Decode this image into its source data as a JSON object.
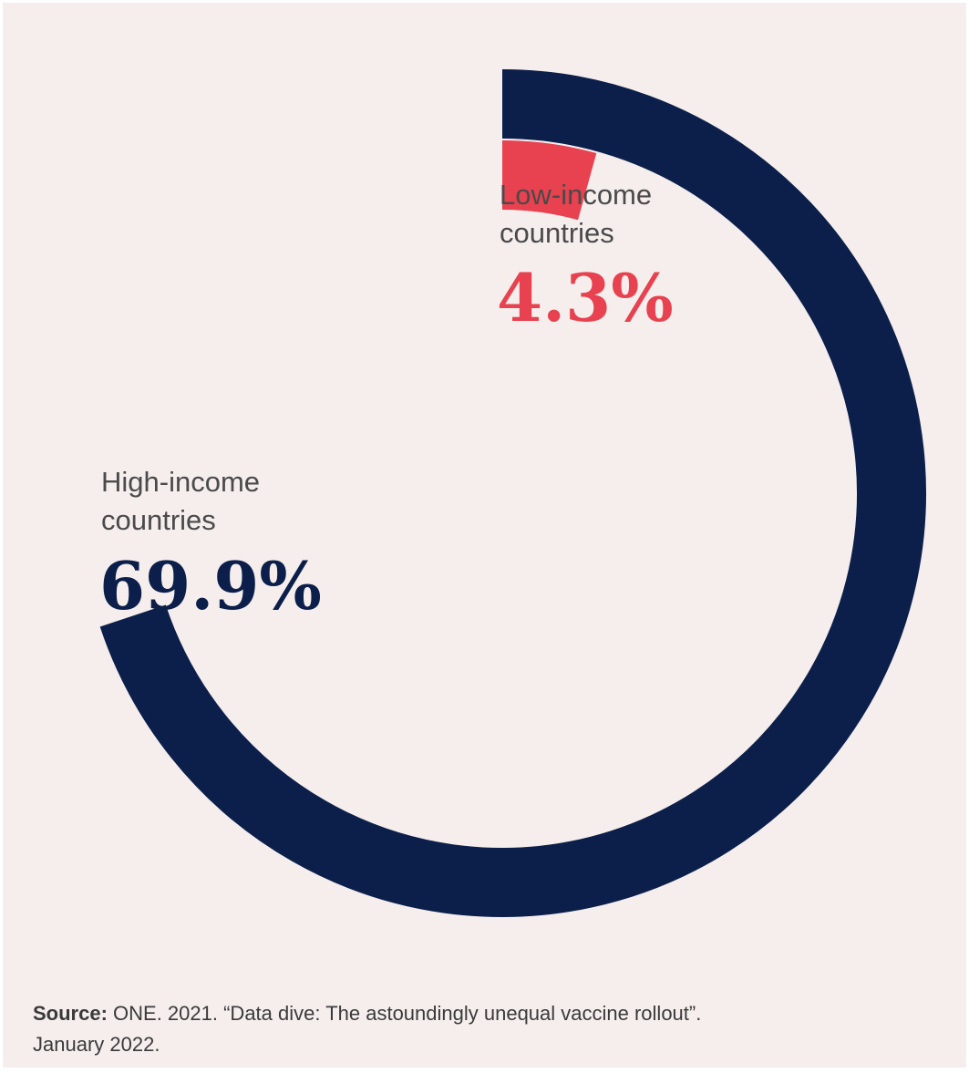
{
  "chart_data": {
    "type": "pie",
    "title": "",
    "series": [
      {
        "name": "High-income countries",
        "label_line1": "High-income",
        "label_line2": "countries",
        "value": 69.9,
        "value_label": "69.9%",
        "color": "#0c1f4a"
      },
      {
        "name": "Low-income countries",
        "label_line1": "Low-income",
        "label_line2": "countries",
        "value": 4.3,
        "value_label": "4.3%",
        "color": "#e8414f"
      }
    ],
    "max": 100,
    "style": "concentric radial progress rings"
  },
  "colors": {
    "background": "#f5eeed",
    "high_income": "#0c1f4a",
    "low_income": "#e8414f",
    "label_text": "#4a4a4a"
  },
  "source": {
    "label": "Source:",
    "text": " ONE. 2021. “Data dive: The astoundingly unequal vaccine rollout”.",
    "date": "January 2022."
  }
}
